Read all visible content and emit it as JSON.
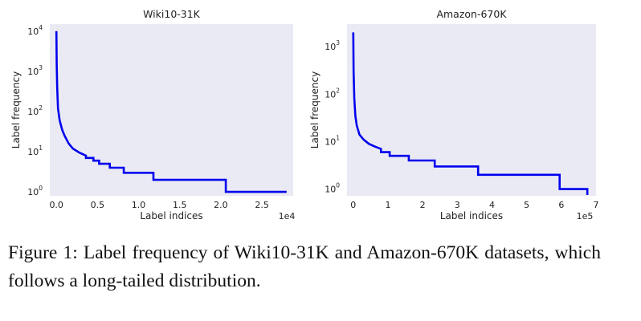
{
  "figure": {
    "caption": "Figure 1: Label frequency of Wiki10-31K and Amazon-670K datasets, which follows a long-tailed distribution."
  },
  "chart_data": [
    {
      "type": "line",
      "title": "Wiki10-31K",
      "xlabel": "Label indices",
      "ylabel": "Label frequency",
      "x_offset_text": "1e4",
      "yscale": "log",
      "xlim": [
        -0.08,
        2.88
      ],
      "ylim": [
        0.8,
        15000
      ],
      "xticks": [
        0.0,
        0.5,
        1.0,
        1.5,
        2.0,
        2.5
      ],
      "xtick_labels": [
        "0.0",
        "0.5",
        "1.0",
        "1.5",
        "2.0",
        "2.5"
      ],
      "ytick_exponents": [
        0,
        1,
        2,
        3,
        4
      ],
      "series": [
        {
          "name": "Label frequency",
          "color": "#0000ee",
          "x": [
            0.0,
            0.004,
            0.01,
            0.02,
            0.04,
            0.07,
            0.1,
            0.15,
            0.2,
            0.28,
            0.36,
            0.36,
            0.45,
            0.45,
            0.52,
            0.52,
            0.65,
            0.65,
            0.82,
            0.82,
            1.18,
            1.18,
            2.06,
            2.06,
            2.8
          ],
          "y": [
            10000,
            1500,
            400,
            120,
            60,
            35,
            25,
            16,
            12,
            9.5,
            8,
            7,
            7,
            6,
            6,
            5,
            5,
            4,
            4,
            3,
            3,
            2,
            2,
            1,
            1
          ]
        }
      ]
    },
    {
      "type": "line",
      "title": "Amazon-670K",
      "xlabel": "Label indices",
      "ylabel": "Label frequency",
      "x_offset_text": "1e5",
      "yscale": "log",
      "xlim": [
        -0.18,
        7.0
      ],
      "ylim": [
        0.72,
        3000
      ],
      "xticks": [
        0,
        1,
        2,
        3,
        4,
        5,
        6,
        7
      ],
      "xtick_labels": [
        "0",
        "1",
        "2",
        "3",
        "4",
        "5",
        "6",
        "7"
      ],
      "ytick_exponents": [
        0,
        1,
        2,
        3
      ],
      "series": [
        {
          "name": "Label frequency",
          "color": "#0000ee",
          "x": [
            0.0,
            0.01,
            0.03,
            0.06,
            0.1,
            0.18,
            0.3,
            0.45,
            0.6,
            0.8,
            0.8,
            1.05,
            1.05,
            1.6,
            1.6,
            2.35,
            2.35,
            3.6,
            3.6,
            5.95,
            5.95,
            6.75,
            6.75
          ],
          "y": [
            2000,
            300,
            80,
            35,
            22,
            14,
            11,
            9,
            8,
            7,
            6,
            6,
            5,
            5,
            4,
            4,
            3,
            3,
            2,
            2,
            1,
            1,
            0.75
          ]
        }
      ]
    }
  ]
}
